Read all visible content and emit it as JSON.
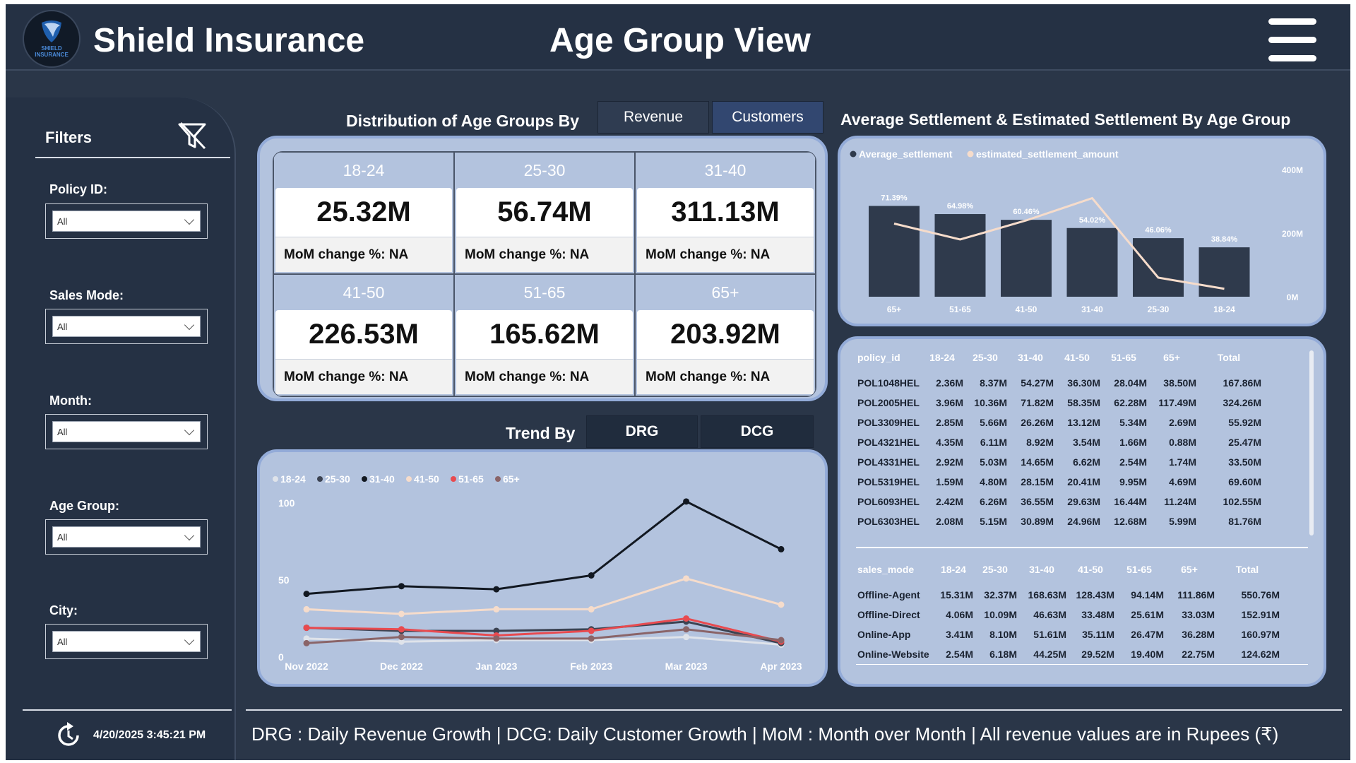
{
  "header": {
    "brand": "Shield Insurance",
    "logo_text": "SHIELD INSURANCE",
    "title": "Age Group View",
    "menu_icon": "hamburger-menu-icon"
  },
  "filters": {
    "title": "Filters",
    "clear_icon": "filter-clear-icon",
    "items": [
      {
        "label": "Policy ID:",
        "value": "All"
      },
      {
        "label": "Sales Mode:",
        "value": "All"
      },
      {
        "label": "Month:",
        "value": "All"
      },
      {
        "label": "Age Group:",
        "value": "All"
      },
      {
        "label": "City:",
        "value": "All"
      }
    ],
    "refresh_icon": "refresh-icon",
    "refresh_time": "4/20/2025 3:45:21 PM"
  },
  "distribution": {
    "title": "Distribution of Age Groups By",
    "tabs": [
      "Revenue",
      "Customers"
    ],
    "active_tab": "Revenue",
    "cards": [
      {
        "group": "18-24",
        "value": "25.32M",
        "mom": "MoM change %: NA"
      },
      {
        "group": "25-30",
        "value": "56.74M",
        "mom": "MoM change %: NA"
      },
      {
        "group": "31-40",
        "value": "311.13M",
        "mom": "MoM change %: NA"
      },
      {
        "group": "41-50",
        "value": "226.53M",
        "mom": "MoM change %: NA"
      },
      {
        "group": "51-65",
        "value": "165.62M",
        "mom": "MoM change %: NA"
      },
      {
        "group": "65+",
        "value": "203.92M",
        "mom": "MoM change %: NA"
      }
    ]
  },
  "trend": {
    "title": "Trend By",
    "tabs": [
      "DRG",
      "DCG"
    ],
    "active_tab": "DRG"
  },
  "settlement": {
    "title": "Average Settlement & Estimated Settlement By Age Group"
  },
  "colors": {
    "panel": "#b3c3de",
    "panel_border": "#93abd8",
    "background": "#2a3648",
    "bar": "#2f3a4c",
    "line_estimate": "#f6dccb"
  },
  "chart_data": [
    {
      "type": "line",
      "x": [
        "Nov 2022",
        "Dec 2022",
        "Jan 2023",
        "Feb 2023",
        "Mar 2023",
        "Apr 2023"
      ],
      "ylim": [
        0,
        100
      ],
      "yticks": [
        "0",
        "50",
        "100"
      ],
      "legend": "top-left",
      "grid": false,
      "series": [
        {
          "name": "18-24",
          "color": "#dfe3ea",
          "values": [
            12,
            10,
            11,
            11,
            13,
            8
          ]
        },
        {
          "name": "25-30",
          "color": "#3c4352",
          "values": [
            19,
            17,
            17,
            18,
            23,
            9
          ]
        },
        {
          "name": "31-40",
          "color": "#121821",
          "values": [
            41,
            46,
            44,
            53,
            101,
            70
          ]
        },
        {
          "name": "41-50",
          "color": "#f6dccb",
          "values": [
            31,
            28,
            31,
            31,
            51,
            34
          ]
        },
        {
          "name": "51-65",
          "color": "#e84a4f",
          "values": [
            19,
            18,
            14,
            17,
            25,
            10
          ]
        },
        {
          "name": "65+",
          "color": "#8a6468",
          "values": [
            9,
            13,
            12,
            12,
            18,
            11
          ]
        }
      ]
    },
    {
      "type": "bar",
      "categories": [
        "65+",
        "51-65",
        "41-50",
        "31-40",
        "25-30",
        "18-24"
      ],
      "y_right_ticks": [
        "0M",
        "200M",
        "400M"
      ],
      "ylim": [
        0,
        400
      ],
      "legend": "top-left",
      "grid": false,
      "series": [
        {
          "name": "Average_settlement",
          "color": "#2f3a4c",
          "values": [
            71.39,
            64.98,
            60.46,
            54.02,
            46.06,
            38.84
          ],
          "labels": [
            "71.39%",
            "64.98%",
            "60.46%",
            "54.02%",
            "46.06%",
            "38.84%"
          ]
        },
        {
          "name": "estimated_settlement_amount",
          "color": "#f6dccb",
          "values": [
            230,
            180,
            240,
            310,
            60,
            25
          ]
        }
      ]
    },
    {
      "type": "table",
      "columns": [
        "policy_id",
        "18-24",
        "25-30",
        "31-40",
        "41-50",
        "51-65",
        "65+",
        "Total"
      ],
      "rows": [
        [
          "POL1048HEL",
          "2.36M",
          "8.37M",
          "54.27M",
          "36.30M",
          "28.04M",
          "38.50M",
          "167.86M"
        ],
        [
          "POL2005HEL",
          "3.96M",
          "10.36M",
          "71.82M",
          "58.35M",
          "62.28M",
          "117.49M",
          "324.26M"
        ],
        [
          "POL3309HEL",
          "2.85M",
          "5.66M",
          "26.26M",
          "13.12M",
          "5.34M",
          "2.69M",
          "55.92M"
        ],
        [
          "POL4321HEL",
          "4.35M",
          "6.11M",
          "8.92M",
          "3.54M",
          "1.66M",
          "0.88M",
          "25.47M"
        ],
        [
          "POL4331HEL",
          "2.92M",
          "5.03M",
          "14.65M",
          "6.62M",
          "2.54M",
          "1.74M",
          "33.50M"
        ],
        [
          "POL5319HEL",
          "1.59M",
          "4.80M",
          "28.15M",
          "20.41M",
          "9.95M",
          "4.69M",
          "69.60M"
        ],
        [
          "POL6093HEL",
          "2.42M",
          "6.26M",
          "36.55M",
          "29.63M",
          "16.44M",
          "11.24M",
          "102.55M"
        ],
        [
          "POL6303HEL",
          "2.08M",
          "5.15M",
          "30.89M",
          "24.96M",
          "12.68M",
          "5.99M",
          "81.76M"
        ]
      ]
    },
    {
      "type": "table",
      "columns": [
        "sales_mode",
        "18-24",
        "25-30",
        "31-40",
        "41-50",
        "51-65",
        "65+",
        "Total"
      ],
      "rows": [
        [
          "Offline-Agent",
          "15.31M",
          "32.37M",
          "168.63M",
          "128.43M",
          "94.14M",
          "111.86M",
          "550.76M"
        ],
        [
          "Offline-Direct",
          "4.06M",
          "10.09M",
          "46.63M",
          "33.48M",
          "25.61M",
          "33.03M",
          "152.91M"
        ],
        [
          "Online-App",
          "3.41M",
          "8.10M",
          "51.61M",
          "35.11M",
          "26.47M",
          "36.28M",
          "160.97M"
        ],
        [
          "Online-Website",
          "2.54M",
          "6.18M",
          "44.25M",
          "29.52M",
          "19.40M",
          "22.75M",
          "124.62M"
        ]
      ]
    }
  ],
  "footer": {
    "text": "DRG : Daily Revenue Growth | DCG: Daily Customer Growth | MoM : Month over Month | All revenue values are in Rupees (₹)"
  }
}
